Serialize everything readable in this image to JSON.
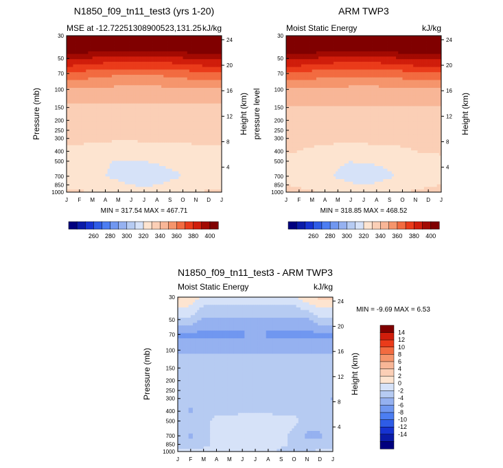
{
  "months": [
    "J",
    "F",
    "M",
    "A",
    "M",
    "J",
    "J",
    "A",
    "S",
    "O",
    "N",
    "D",
    "J"
  ],
  "pressure_ticks": [
    "30",
    "50",
    "70",
    "100",
    "150",
    "200",
    "250",
    "300",
    "400",
    "500",
    "700",
    "850",
    "1000"
  ],
  "pressure_values": [
    30,
    50,
    70,
    100,
    150,
    200,
    250,
    300,
    400,
    500,
    700,
    850,
    1000
  ],
  "height_ticks": [
    "24",
    "20",
    "16",
    "12",
    "8",
    "4"
  ],
  "colors": {
    "mse": [
      "#00007f",
      "#0a1ba8",
      "#1633d1",
      "#2e5ce6",
      "#4c7ef2",
      "#7097f0",
      "#95b1f0",
      "#b6cbf2",
      "#d6e2f8",
      "#fde4d0",
      "#fbcfb6",
      "#f8b697",
      "#f5956c",
      "#f26b40",
      "#ea3b1a",
      "#d01d0b",
      "#a30a02",
      "#800000"
    ],
    "diff": [
      "#00007f",
      "#0a1ba8",
      "#1633d1",
      "#2e5ce6",
      "#4c7ef2",
      "#7097f0",
      "#95b1f0",
      "#b6cbf2",
      "#d6e2f8",
      "#fde4d0",
      "#fbcfb6",
      "#f8b697",
      "#f5956c",
      "#f26b40",
      "#ea3b1a",
      "#d01d0b",
      "#800000"
    ]
  },
  "charts": [
    {
      "title": "N1850_f09_tn11_test3 (yrs 1-20)",
      "left_label": "MSE at -12.72251308900523,131.25",
      "right_label": "kJ/kg",
      "ylabel": "Pressure (mb)",
      "y2label": "Height (km)",
      "minmax": "MIN = 317.54 MAX = 467.71"
    },
    {
      "title": "ARM TWP3",
      "left_label": "Moist Static Energy",
      "right_label": "kJ/kg",
      "ylabel": "pressure level",
      "y2label": "Height (km)",
      "minmax": "MIN = 318.85 MAX = 468.52"
    },
    {
      "title": "N1850_f09_tn11_test3 - ARM TWP3",
      "left_label": "Moist Static Energy",
      "right_label": "kJ/kg",
      "ylabel": "Pressure (mb)",
      "y2label": "Height (km)",
      "minmax": "MIN =  -9.69 MAX =   6.53"
    }
  ],
  "colorbar_mse_labels": [
    "260",
    "280",
    "300",
    "320",
    "340",
    "360",
    "380",
    "400"
  ],
  "colorbar_diff_labels": [
    "14",
    "12",
    "10",
    "8",
    "6",
    "4",
    "2",
    "0",
    "-2",
    "-4",
    "-6",
    "-8",
    "-10",
    "-12",
    "-14"
  ],
  "chart_data": [
    {
      "type": "heatmap",
      "title": "N1850_f09_tn11_test3 (yrs 1-20)",
      "subtitle": "MSE at -12.72251308900523,131.25",
      "units": "kJ/kg",
      "x": [
        "J",
        "F",
        "M",
        "A",
        "M",
        "J",
        "J",
        "A",
        "S",
        "O",
        "N",
        "D",
        "J"
      ],
      "y": [
        1000,
        850,
        700,
        500,
        400,
        300,
        250,
        200,
        150,
        100,
        70,
        50,
        30
      ],
      "xlabel": "",
      "ylabel": "Pressure (mb)",
      "y2label": "Height (km)",
      "levels": [
        250,
        260,
        270,
        280,
        290,
        300,
        310,
        320,
        330,
        340,
        350,
        360,
        370,
        380,
        390,
        400,
        410
      ],
      "min": 317.54,
      "max": 467.71,
      "values": [
        [
          342,
          341,
          340,
          339,
          337,
          334,
          333,
          334,
          337,
          339,
          340,
          341,
          342
        ],
        [
          338,
          337,
          336,
          334,
          332,
          330,
          329,
          330,
          332,
          334,
          336,
          337,
          338
        ],
        [
          335,
          334,
          332,
          330,
          328,
          326,
          325,
          326,
          328,
          330,
          332,
          334,
          335
        ],
        [
          336,
          335,
          333,
          331,
          329,
          329,
          330,
          331,
          332,
          333,
          334,
          335,
          336
        ],
        [
          339,
          339,
          338,
          337,
          336,
          336,
          337,
          337,
          338,
          338,
          339,
          339,
          339
        ],
        [
          341,
          341,
          341,
          341,
          341,
          341,
          341,
          341,
          341,
          341,
          341,
          341,
          341
        ],
        [
          343,
          343,
          343,
          343,
          343,
          343,
          343,
          343,
          343,
          343,
          343,
          343,
          343
        ],
        [
          345,
          345,
          345,
          345,
          345,
          345,
          345,
          345,
          345,
          345,
          345,
          345,
          345
        ],
        [
          348,
          348,
          348,
          348,
          348,
          348,
          348,
          348,
          348,
          348,
          348,
          348,
          348
        ],
        [
          359,
          359,
          358,
          358,
          357,
          357,
          357,
          357,
          358,
          358,
          359,
          359,
          359
        ],
        [
          378,
          377,
          375,
          373,
          372,
          372,
          372,
          372,
          373,
          375,
          377,
          378,
          378
        ],
        [
          402,
          401,
          399,
          397,
          396,
          396,
          396,
          396,
          397,
          399,
          401,
          402,
          402
        ],
        [
          440,
          440,
          440,
          440,
          440,
          440,
          440,
          440,
          440,
          440,
          440,
          440,
          440
        ]
      ]
    },
    {
      "type": "heatmap",
      "title": "ARM TWP3",
      "subtitle": "Moist Static Energy",
      "units": "kJ/kg",
      "x": [
        "J",
        "F",
        "M",
        "A",
        "M",
        "J",
        "J",
        "A",
        "S",
        "O",
        "N",
        "D",
        "J"
      ],
      "y": [
        1000,
        850,
        700,
        500,
        400,
        300,
        250,
        200,
        150,
        100,
        70,
        50,
        30
      ],
      "xlabel": "",
      "ylabel": "pressure level",
      "y2label": "Height (km)",
      "levels": [
        250,
        260,
        270,
        280,
        290,
        300,
        310,
        320,
        330,
        340,
        350,
        360,
        370,
        380,
        390,
        400,
        410
      ],
      "min": 318.85,
      "max": 468.52,
      "values": [
        [
          343,
          342,
          341,
          340,
          338,
          336,
          335,
          336,
          338,
          340,
          341,
          342,
          343
        ],
        [
          340,
          339,
          337,
          335,
          333,
          331,
          330,
          331,
          333,
          335,
          338,
          339,
          340
        ],
        [
          337,
          336,
          334,
          332,
          329,
          327,
          326,
          327,
          329,
          331,
          334,
          336,
          337
        ],
        [
          338,
          337,
          335,
          333,
          331,
          330,
          331,
          331,
          332,
          334,
          336,
          337,
          338
        ],
        [
          341,
          340,
          339,
          338,
          337,
          337,
          337,
          338,
          338,
          339,
          340,
          341,
          341
        ],
        [
          342,
          342,
          342,
          342,
          342,
          342,
          342,
          342,
          342,
          342,
          342,
          342,
          342
        ],
        [
          344,
          344,
          344,
          344,
          344,
          344,
          344,
          344,
          344,
          344,
          344,
          344,
          344
        ],
        [
          346,
          346,
          346,
          346,
          346,
          346,
          346,
          346,
          346,
          346,
          346,
          346,
          346
        ],
        [
          349,
          349,
          349,
          349,
          349,
          349,
          349,
          349,
          349,
          349,
          349,
          349,
          349
        ],
        [
          359,
          359,
          359,
          358,
          358,
          357,
          357,
          357,
          358,
          358,
          359,
          359,
          359
        ],
        [
          379,
          378,
          376,
          374,
          373,
          373,
          373,
          373,
          374,
          376,
          378,
          379,
          379
        ],
        [
          403,
          402,
          400,
          398,
          397,
          397,
          397,
          397,
          398,
          400,
          402,
          403,
          403
        ],
        [
          441,
          441,
          441,
          441,
          441,
          441,
          441,
          441,
          441,
          441,
          441,
          441,
          441
        ]
      ]
    },
    {
      "type": "heatmap",
      "title": "N1850_f09_tn11_test3 - ARM TWP3",
      "subtitle": "Moist Static Energy",
      "units": "kJ/kg",
      "x": [
        "J",
        "F",
        "M",
        "A",
        "M",
        "J",
        "J",
        "A",
        "S",
        "O",
        "N",
        "D",
        "J"
      ],
      "y": [
        1000,
        850,
        700,
        500,
        400,
        300,
        250,
        200,
        150,
        100,
        70,
        50,
        30
      ],
      "xlabel": "",
      "ylabel": "Pressure (mb)",
      "y2label": "Height (km)",
      "levels": [
        -16,
        -14,
        -12,
        -10,
        -8,
        -6,
        -4,
        -2,
        0,
        2,
        4,
        6,
        8,
        10,
        12,
        14
      ],
      "min": -9.69,
      "max": 6.53,
      "values": [
        [
          -1.5,
          -1.5,
          -1.5,
          -1.5,
          -1.5,
          -1.5,
          -1.5,
          -1.5,
          -2.5,
          -2.5,
          -2.5,
          -1.5,
          -1.5
        ],
        [
          -2.5,
          -2.5,
          -2.5,
          -1.5,
          -1.5,
          -1.5,
          -1.5,
          -1.5,
          -1.5,
          -2.5,
          -2.5,
          -2.5,
          -2.5
        ],
        [
          -2.5,
          -4.5,
          -2.5,
          -1.5,
          -1.5,
          -0.5,
          -0.5,
          -0.5,
          -1.5,
          -2.5,
          -4.5,
          -4.5,
          -2.5
        ],
        [
          -2.5,
          -2.5,
          -2.5,
          -1.5,
          -1.5,
          -0.5,
          -0.5,
          -0.5,
          -1.5,
          -1.5,
          -2.5,
          -2.5,
          -2.5
        ],
        [
          -2.5,
          -4.5,
          -2.5,
          -2.5,
          -2.5,
          -2.5,
          -2.5,
          -2.5,
          -2.5,
          -2.5,
          -2.5,
          -2.5,
          -2.5
        ],
        [
          -2.5,
          -2.5,
          -2.5,
          -2.5,
          -2.5,
          -2.5,
          -2.5,
          -2.5,
          -2.5,
          -2.5,
          -2.5,
          -2.5,
          -4.5
        ],
        [
          -2.5,
          -2.5,
          -2.5,
          -2.5,
          -2.5,
          -2.5,
          -2.5,
          -2.5,
          -2.5,
          -2.5,
          -2.5,
          -2.5,
          -2.5
        ],
        [
          -2.5,
          -2.5,
          -2.5,
          -2.5,
          -2.5,
          -2.5,
          -2.5,
          -2.5,
          -2.5,
          -2.5,
          -2.5,
          -2.5,
          -2.5
        ],
        [
          -2.5,
          -2.5,
          -2.5,
          -2.5,
          -2.5,
          -2.5,
          -2.5,
          -2.5,
          -2.5,
          -2.5,
          -2.5,
          -2.5,
          -2.5
        ],
        [
          -4.5,
          -4.5,
          -4.5,
          -4.5,
          -4.5,
          -4.5,
          -4.5,
          -4.5,
          -4.5,
          -4.5,
          -4.5,
          -4.5,
          -4.5
        ],
        [
          -6.5,
          -6.5,
          -6.5,
          -6.5,
          -6.5,
          -6.5,
          -4.5,
          -6.5,
          -6.5,
          -6.5,
          -6.5,
          -6.5,
          -6.5
        ],
        [
          -2.5,
          -2.5,
          -4.5,
          -4.5,
          -4.5,
          -4.5,
          -4.5,
          -4.5,
          -4.5,
          -4.5,
          -4.5,
          -2.5,
          -2.5
        ],
        [
          2.5,
          1.5,
          -0.5,
          -0.5,
          -0.5,
          -0.5,
          -0.5,
          -0.5,
          -0.5,
          -0.5,
          1.5,
          2.5,
          2.5
        ]
      ]
    }
  ]
}
